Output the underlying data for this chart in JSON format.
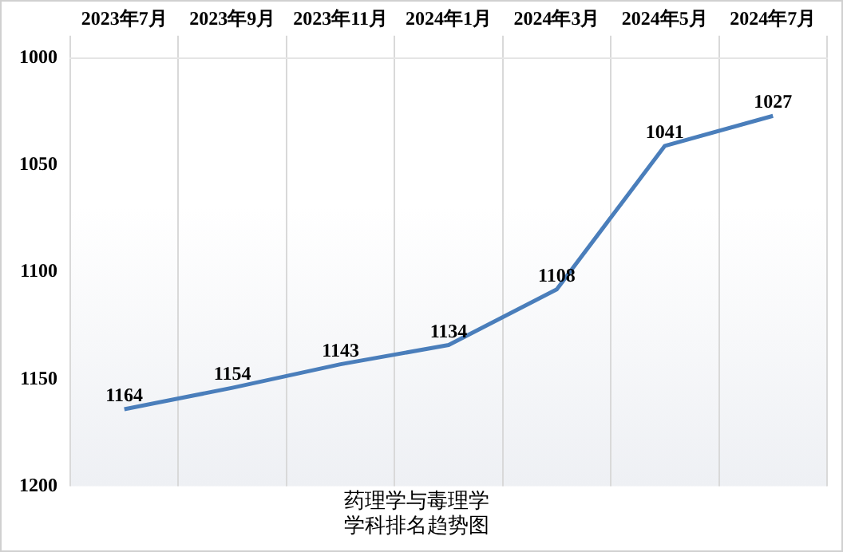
{
  "chart_data": {
    "type": "line",
    "title": "药理学与毒理学学科排名趋势图",
    "categories": [
      "2023年7月",
      "2023年9月",
      "2023年11月",
      "2024年1月",
      "2024年3月",
      "2024年5月",
      "2024年7月"
    ],
    "series": [
      {
        "color": "#4a7ebb",
        "values": [
          1164,
          1154,
          1143,
          1134,
          1108,
          1041,
          1027
        ]
      }
    ],
    "ylim": [
      1200,
      1000
    ],
    "yticks": [
      1000,
      1050,
      1100,
      1150,
      1200
    ],
    "grid": "x",
    "legend": false,
    "marker": "none",
    "line_style": "solid",
    "data_labels": true
  }
}
